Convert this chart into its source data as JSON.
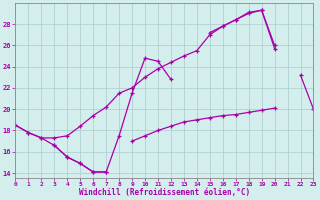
{
  "xlabel": "Windchill (Refroidissement éolien,°C)",
  "bg_color": "#d4eeed",
  "grid_color": "#aacccc",
  "line_color": "#aa00aa",
  "x_values": [
    0,
    1,
    2,
    3,
    4,
    5,
    6,
    7,
    8,
    9,
    10,
    11,
    12,
    13,
    14,
    15,
    16,
    17,
    18,
    19,
    20,
    21,
    22,
    23
  ],
  "line1_y": [
    18.5,
    17.8,
    17.3,
    16.6,
    15.5,
    14.9,
    14.1,
    14.1,
    null,
    null,
    null,
    null,
    null,
    null,
    null,
    null,
    null,
    null,
    null,
    null,
    null,
    null,
    null,
    null
  ],
  "line2_y": [
    18.5,
    17.8,
    17.3,
    17.3,
    17.5,
    18.4,
    19.4,
    20.2,
    21.5,
    22.0,
    23.0,
    23.8,
    24.4,
    25.0,
    25.5,
    27.0,
    27.8,
    28.4,
    29.0,
    29.3,
    25.7,
    null,
    null,
    null
  ],
  "line3_y": [
    null,
    null,
    null,
    16.6,
    15.5,
    14.9,
    14.1,
    14.1,
    17.5,
    21.5,
    24.8,
    24.5,
    22.8,
    null,
    null,
    null,
    null,
    null,
    null,
    null,
    null,
    null,
    null,
    null
  ],
  "line4_y": [
    null,
    null,
    null,
    null,
    null,
    null,
    null,
    null,
    null,
    null,
    null,
    null,
    null,
    null,
    null,
    27.2,
    27.8,
    28.4,
    29.1,
    29.3,
    26.0,
    null,
    23.2,
    20.0
  ],
  "line5_y": [
    null,
    null,
    null,
    null,
    null,
    null,
    null,
    null,
    null,
    17.0,
    17.5,
    18.0,
    18.4,
    18.8,
    19.0,
    19.2,
    19.4,
    19.5,
    19.7,
    19.9,
    20.1,
    null,
    null,
    null
  ],
  "xlim": [
    0,
    23
  ],
  "ylim": [
    13.5,
    30.0
  ],
  "yticks": [
    14,
    16,
    18,
    20,
    22,
    24,
    26,
    28
  ],
  "xticks": [
    0,
    1,
    2,
    3,
    4,
    5,
    6,
    7,
    8,
    9,
    10,
    11,
    12,
    13,
    14,
    15,
    16,
    17,
    18,
    19,
    20,
    21,
    22,
    23
  ],
  "xtick_labels": [
    "0",
    "1",
    "2",
    "3",
    "4",
    "5",
    "6",
    "7",
    "8",
    "9",
    "10",
    "11",
    "12",
    "13",
    "14",
    "15",
    "16",
    "17",
    "18",
    "19",
    "20",
    "21",
    "22",
    "23"
  ]
}
